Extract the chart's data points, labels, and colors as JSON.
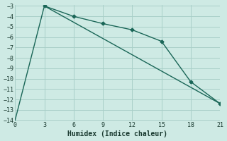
{
  "xlabel": "Humidex (Indice chaleur)",
  "background_color": "#ceeae4",
  "grid_color": "#a8cfc8",
  "line_color": "#1a6657",
  "line1_x": [
    3,
    6,
    9,
    12,
    15,
    18,
    21
  ],
  "line1_y": [
    -3,
    -4,
    -4.7,
    -5.3,
    -6.4,
    -10.3,
    -12.4
  ],
  "line2_x": [
    0,
    3,
    21
  ],
  "line2_y": [
    -14,
    -3,
    -12.4
  ],
  "xlim": [
    0,
    21
  ],
  "ylim": [
    -14,
    -3
  ],
  "xticks": [
    0,
    3,
    6,
    9,
    12,
    15,
    18,
    21
  ],
  "yticks": [
    -14,
    -13,
    -12,
    -11,
    -10,
    -9,
    -8,
    -7,
    -6,
    -5,
    -4,
    -3
  ]
}
